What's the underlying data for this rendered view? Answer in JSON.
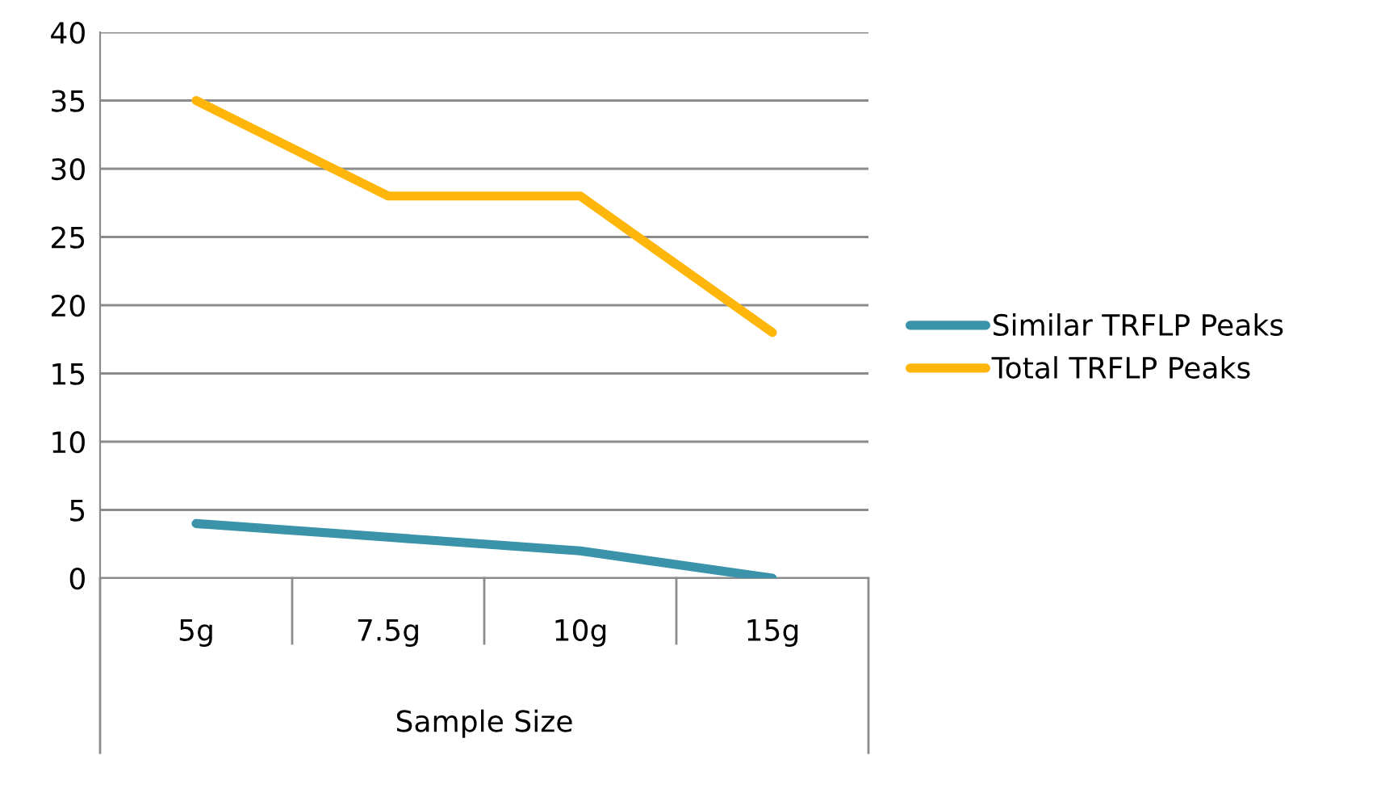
{
  "chart_data": {
    "type": "line",
    "xlabel": "Sample Size",
    "categories": [
      "5g",
      "7.5g",
      "10g",
      "15g"
    ],
    "series": [
      {
        "name": "Similar TRFLP Peaks",
        "color": "#3a93a8",
        "values": [
          4,
          3,
          2,
          0
        ]
      },
      {
        "name": "Total TRFLP Peaks",
        "color": "#ffb60a",
        "values": [
          35,
          28,
          28,
          18
        ]
      }
    ],
    "ylim": [
      0,
      40
    ],
    "yticks": [
      0,
      5,
      10,
      15,
      20,
      25,
      30,
      35,
      40
    ],
    "grid": "y",
    "legend": "right",
    "marker": "none",
    "line_style": "solid"
  }
}
